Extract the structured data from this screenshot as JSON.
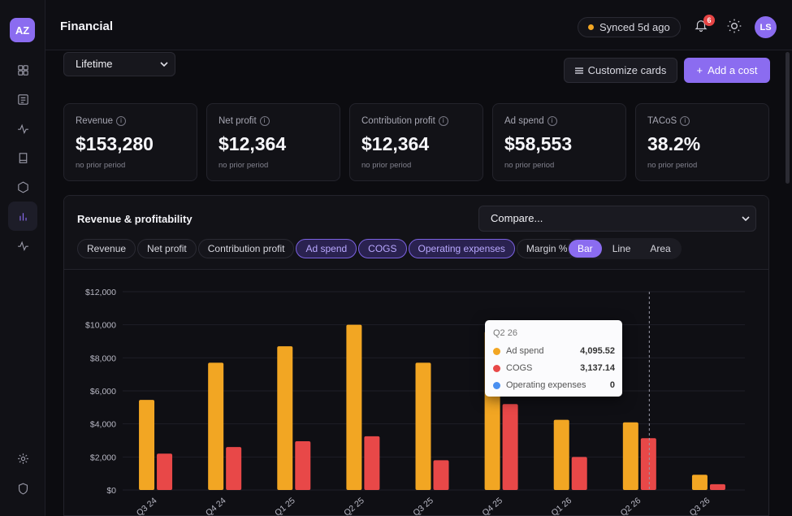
{
  "app": {
    "logo": "AZ",
    "page_title": "Financial",
    "sync_status": "Synced 5d ago",
    "notifications": "6",
    "avatar": "LS"
  },
  "sidebar": {
    "icons": [
      "dashboard-icon",
      "orders-icon",
      "activity-icon",
      "book-icon",
      "box-icon",
      "bar-chart-icon",
      "pulse-icon",
      "settings-icon",
      "shield-icon"
    ]
  },
  "filters": {
    "period": "Lifetime",
    "customize_label": "Customize cards",
    "add_cost_label": "Add a cost"
  },
  "cards": [
    {
      "label": "Revenue",
      "value": "$153,280",
      "sub": "no prior period"
    },
    {
      "label": "Net profit",
      "value": "$12,364",
      "sub": "no prior period"
    },
    {
      "label": "Contribution profit",
      "value": "$12,364",
      "sub": "no prior period"
    },
    {
      "label": "Ad spend",
      "value": "$58,553",
      "sub": "no prior period"
    },
    {
      "label": "TACoS",
      "value": "38.2%",
      "sub": "no prior period"
    }
  ],
  "panel": {
    "title": "Revenue & profitability",
    "compare_placeholder": "Compare...",
    "metric_pills": [
      "Revenue",
      "Net profit",
      "Contribution profit",
      "Ad spend",
      "COGS",
      "Operating expenses",
      "Margin %"
    ],
    "active_pills": [
      "Ad spend",
      "COGS",
      "Operating expenses"
    ],
    "chart_types": [
      "Bar",
      "Line",
      "Area"
    ],
    "active_chart_type": "Bar"
  },
  "colors": {
    "ad_spend": "#f2a623",
    "cogs": "#e84848",
    "operating_expenses": "#4a8ff0",
    "accent": "#8b6cf0"
  },
  "chart_data": {
    "type": "bar",
    "categories": [
      "Q3 24",
      "Q4 24",
      "Q1 25",
      "Q2 25",
      "Q3 25",
      "Q4 25",
      "Q1 26",
      "Q2 26",
      "Q3 26"
    ],
    "series": [
      {
        "name": "Ad spend",
        "values": [
          5450,
          7700,
          8700,
          10000,
          7700,
          9600,
          4250,
          4095.52,
          920
        ]
      },
      {
        "name": "COGS",
        "values": [
          2200,
          2600,
          2950,
          3250,
          1800,
          5200,
          2000,
          3137.14,
          350
        ]
      },
      {
        "name": "Operating expenses",
        "values": [
          0,
          0,
          0,
          0,
          0,
          0,
          0,
          0,
          0
        ]
      }
    ],
    "yticks": [
      "$12,000",
      "$10,000",
      "$8,000",
      "$6,000",
      "$4,000",
      "$2,000",
      "$0"
    ],
    "ylim": [
      0,
      12000
    ],
    "grid": true,
    "tooltip": {
      "title": "Q2 26",
      "rows": [
        {
          "name": "Ad spend",
          "value": "4,095.52"
        },
        {
          "name": "COGS",
          "value": "3,137.14"
        },
        {
          "name": "Operating expenses",
          "value": "0"
        }
      ]
    }
  }
}
